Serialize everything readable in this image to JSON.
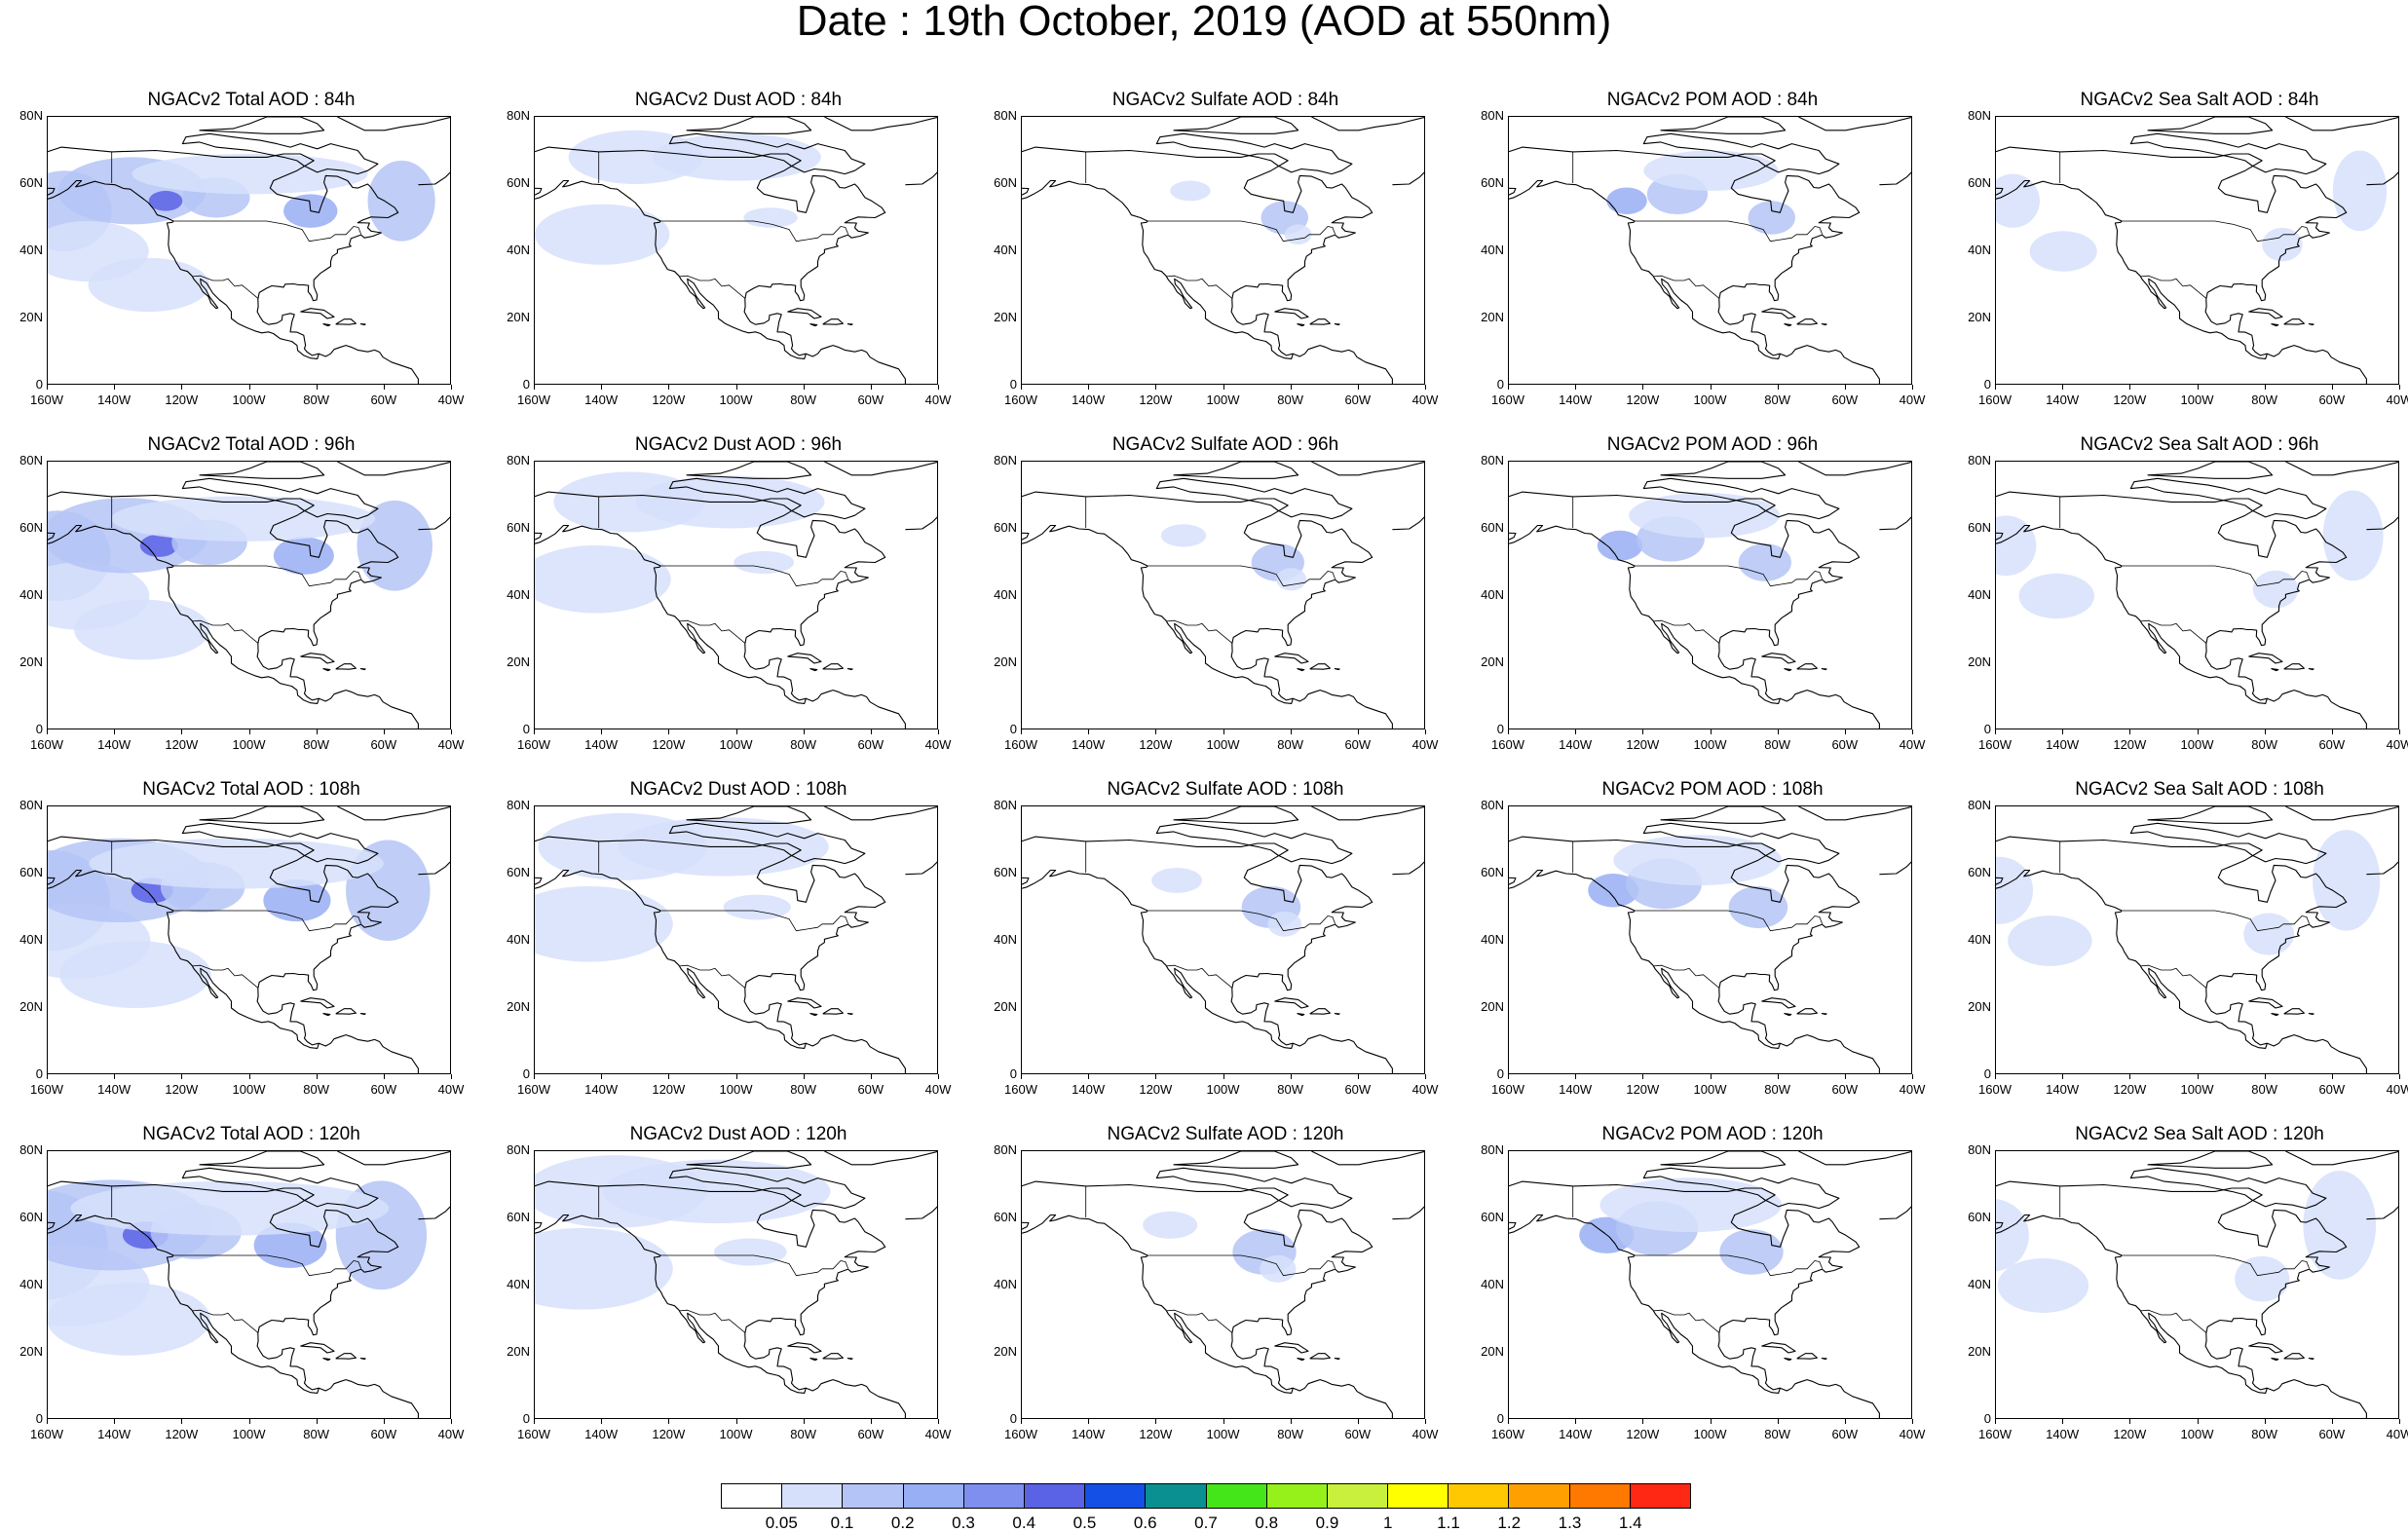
{
  "title": "Date : 19th October, 2019 (AOD at 550nm)",
  "lat_labels": [
    "80N",
    "60N",
    "40N",
    "20N",
    "0"
  ],
  "lon_labels": [
    "160W",
    "140W",
    "120W",
    "100W",
    "80W",
    "60W",
    "40W"
  ],
  "species": [
    "Total",
    "Dust",
    "Sulfate",
    "POM",
    "Sea Salt"
  ],
  "panels": [
    [
      {
        "title": "NGACv2 Total AOD : 84h",
        "species": "Total",
        "hour": "84h"
      },
      {
        "title": "NGACv2 Dust AOD : 84h",
        "species": "Dust",
        "hour": "84h"
      },
      {
        "title": "NGACv2 Sulfate AOD : 84h",
        "species": "Sulfate",
        "hour": "84h"
      },
      {
        "title": "NGACv2 POM AOD : 84h",
        "species": "POM",
        "hour": "84h"
      },
      {
        "title": "NGACv2 Sea Salt AOD : 84h",
        "species": "Sea Salt",
        "hour": "84h"
      }
    ],
    [
      {
        "title": "NGACv2 Total AOD : 96h",
        "species": "Total",
        "hour": "96h"
      },
      {
        "title": "NGACv2 Dust AOD : 96h",
        "species": "Dust",
        "hour": "96h"
      },
      {
        "title": "NGACv2 Sulfate AOD : 96h",
        "species": "Sulfate",
        "hour": "96h"
      },
      {
        "title": "NGACv2 POM AOD : 96h",
        "species": "POM",
        "hour": "96h"
      },
      {
        "title": "NGACv2 Sea Salt AOD : 96h",
        "species": "Sea Salt",
        "hour": "96h"
      }
    ],
    [
      {
        "title": "NGACv2 Total AOD : 108h",
        "species": "Total",
        "hour": "108h"
      },
      {
        "title": "NGACv2 Dust AOD : 108h",
        "species": "Dust",
        "hour": "108h"
      },
      {
        "title": "NGACv2 Sulfate AOD : 108h",
        "species": "Sulfate",
        "hour": "108h"
      },
      {
        "title": "NGACv2 POM AOD : 108h",
        "species": "POM",
        "hour": "108h"
      },
      {
        "title": "NGACv2 Sea Salt AOD : 108h",
        "species": "Sea Salt",
        "hour": "108h"
      }
    ],
    [
      {
        "title": "NGACv2 Total AOD : 120h",
        "species": "Total",
        "hour": "120h"
      },
      {
        "title": "NGACv2 Dust AOD : 120h",
        "species": "Dust",
        "hour": "120h"
      },
      {
        "title": "NGACv2 Sulfate AOD : 120h",
        "species": "Sulfate",
        "hour": "120h"
      },
      {
        "title": "NGACv2 POM AOD : 120h",
        "species": "POM",
        "hour": "120h"
      },
      {
        "title": "NGACv2 Sea Salt  AOD : 120h",
        "species": "Sea Salt",
        "hour": "120h"
      }
    ]
  ],
  "colorbar": {
    "labels": [
      "0.05",
      "0.1",
      "0.2",
      "0.3",
      "0.4",
      "0.5",
      "0.6",
      "0.7",
      "0.8",
      "0.9",
      "1",
      "1.1",
      "1.2",
      "1.3",
      "1.4"
    ],
    "colors": [
      "#ffffff",
      "#d6e0fb",
      "#b4c4f6",
      "#98aef5",
      "#7f8ff0",
      "#5a62e6",
      "#1450e6",
      "#0a9090",
      "#44e61a",
      "#96f01a",
      "#c8f03c",
      "#ffff00",
      "#ffc800",
      "#ffa000",
      "#ff7800",
      "#ff2814"
    ]
  }
}
